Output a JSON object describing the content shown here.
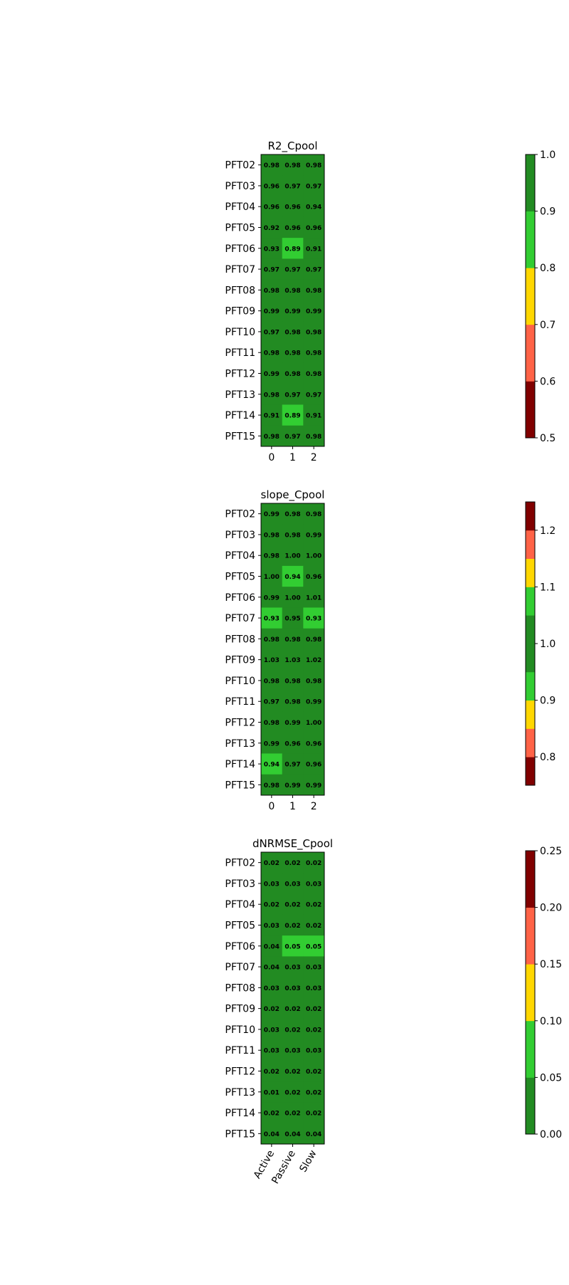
{
  "chart_data": [
    {
      "type": "heatmap",
      "title": "R2_Cpool",
      "rows": [
        "PFT02",
        "PFT03",
        "PFT04",
        "PFT05",
        "PFT06",
        "PFT07",
        "PFT08",
        "PFT09",
        "PFT10",
        "PFT11",
        "PFT12",
        "PFT13",
        "PFT14",
        "PFT15"
      ],
      "x_tick_labels": [
        "0",
        "1",
        "2"
      ],
      "values": [
        [
          0.98,
          0.98,
          0.98
        ],
        [
          0.96,
          0.97,
          0.97
        ],
        [
          0.96,
          0.96,
          0.94
        ],
        [
          0.92,
          0.96,
          0.96
        ],
        [
          0.93,
          0.89,
          0.91
        ],
        [
          0.97,
          0.97,
          0.97
        ],
        [
          0.98,
          0.98,
          0.98
        ],
        [
          0.99,
          0.99,
          0.99
        ],
        [
          0.97,
          0.98,
          0.98
        ],
        [
          0.98,
          0.98,
          0.98
        ],
        [
          0.99,
          0.98,
          0.98
        ],
        [
          0.98,
          0.97,
          0.97
        ],
        [
          0.91,
          0.89,
          0.91
        ],
        [
          0.98,
          0.97,
          0.98
        ]
      ],
      "colorbar": {
        "bounds": [
          0.5,
          0.6,
          0.7,
          0.8,
          0.9,
          1.0
        ],
        "colors": [
          "#800000",
          "#ff6347",
          "#ffd700",
          "#32cd32",
          "#228b22"
        ],
        "ticks": [
          "0.5",
          "0.6",
          "0.7",
          "0.8",
          "0.9",
          "1.0"
        ]
      }
    },
    {
      "type": "heatmap",
      "title": "slope_Cpool",
      "rows": [
        "PFT02",
        "PFT03",
        "PFT04",
        "PFT05",
        "PFT06",
        "PFT07",
        "PFT08",
        "PFT09",
        "PFT10",
        "PFT11",
        "PFT12",
        "PFT13",
        "PFT14",
        "PFT15"
      ],
      "x_tick_labels": [
        "0",
        "1",
        "2"
      ],
      "values": [
        [
          0.99,
          0.98,
          0.98
        ],
        [
          0.98,
          0.98,
          0.99
        ],
        [
          0.98,
          1.0,
          1.0
        ],
        [
          1.0,
          0.94,
          0.96
        ],
        [
          0.99,
          1.0,
          1.01
        ],
        [
          0.93,
          0.95,
          0.93
        ],
        [
          0.98,
          0.98,
          0.98
        ],
        [
          1.03,
          1.03,
          1.02
        ],
        [
          0.98,
          0.98,
          0.98
        ],
        [
          0.97,
          0.98,
          0.99
        ],
        [
          0.98,
          0.99,
          1.0
        ],
        [
          0.99,
          0.96,
          0.96
        ],
        [
          0.94,
          0.97,
          0.96
        ],
        [
          0.98,
          0.99,
          0.99
        ]
      ],
      "colorbar": {
        "bounds": [
          0.75,
          0.8,
          0.85,
          0.9,
          0.95,
          1.05,
          1.1,
          1.15,
          1.2,
          1.25
        ],
        "colors": [
          "#800000",
          "#ff6347",
          "#ffd700",
          "#32cd32",
          "#228b22",
          "#32cd32",
          "#ffd700",
          "#ff6347",
          "#800000"
        ],
        "ticks": [
          "0.8",
          "0.9",
          "1.0",
          "1.1",
          "1.2"
        ]
      }
    },
    {
      "type": "heatmap",
      "title": "dNRMSE_Cpool",
      "rows": [
        "PFT02",
        "PFT03",
        "PFT04",
        "PFT05",
        "PFT06",
        "PFT07",
        "PFT08",
        "PFT09",
        "PFT10",
        "PFT11",
        "PFT12",
        "PFT13",
        "PFT14",
        "PFT15"
      ],
      "x_tick_labels": [
        "Active",
        "Passive",
        "Slow"
      ],
      "values": [
        [
          0.02,
          0.02,
          0.02
        ],
        [
          0.03,
          0.03,
          0.03
        ],
        [
          0.02,
          0.02,
          0.02
        ],
        [
          0.03,
          0.02,
          0.02
        ],
        [
          0.04,
          0.05,
          0.05
        ],
        [
          0.04,
          0.03,
          0.03
        ],
        [
          0.03,
          0.03,
          0.03
        ],
        [
          0.02,
          0.02,
          0.02
        ],
        [
          0.03,
          0.02,
          0.02
        ],
        [
          0.03,
          0.03,
          0.03
        ],
        [
          0.02,
          0.02,
          0.02
        ],
        [
          0.01,
          0.02,
          0.02
        ],
        [
          0.02,
          0.02,
          0.02
        ],
        [
          0.04,
          0.04,
          0.04
        ]
      ],
      "colorbar": {
        "bounds": [
          0.0,
          0.05,
          0.1,
          0.15,
          0.2,
          0.25
        ],
        "colors": [
          "#228b22",
          "#32cd32",
          "#ffd700",
          "#ff6347",
          "#800000"
        ],
        "ticks": [
          "0.00",
          "0.05",
          "0.10",
          "0.15",
          "0.20",
          "0.25"
        ]
      }
    }
  ]
}
